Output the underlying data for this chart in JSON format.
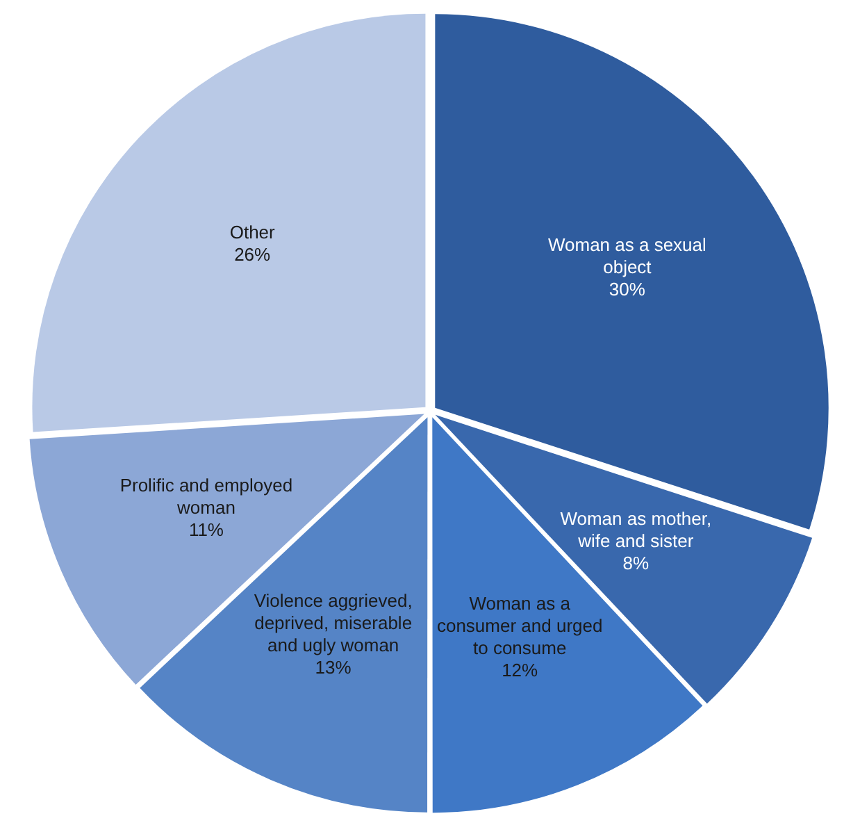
{
  "chart_data": {
    "type": "pie",
    "categories": [
      "Woman as a sexual object",
      "Woman as mother, wife and sister",
      "Woman as a consumer and urged to consume",
      "Violence aggrieved, deprived, miserable and ugly woman",
      "Prolific and employed woman",
      "Other"
    ],
    "values": [
      30,
      8,
      12,
      13,
      11,
      26
    ],
    "colors": [
      "#2f5c9e",
      "#3968ad",
      "#3f78c6",
      "#5584c6",
      "#8ca7d6",
      "#b9c9e6"
    ],
    "value_labels": [
      "30%",
      "8%",
      "12%",
      "13%",
      "11%",
      "26%"
    ]
  }
}
